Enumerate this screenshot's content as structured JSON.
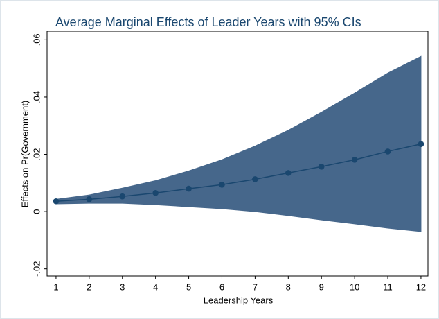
{
  "chart_data": {
    "type": "line",
    "title": "Average Marginal Effects of Leader Years with 95% CIs",
    "x_label": "Leadership Years",
    "y_label": "Effects on Pr(Government)",
    "x": [
      1,
      2,
      3,
      4,
      5,
      6,
      7,
      8,
      9,
      10,
      11,
      12
    ],
    "values": [
      0.0036,
      0.0043,
      0.0053,
      0.0065,
      0.008,
      0.0094,
      0.0113,
      0.0135,
      0.0157,
      0.0181,
      0.021,
      0.0236
    ],
    "ci_upper": [
      0.0043,
      0.0058,
      0.0082,
      0.0108,
      0.0142,
      0.0181,
      0.0229,
      0.0284,
      0.0347,
      0.0414,
      0.0484,
      0.0542
    ],
    "ci_lower": [
      0.0027,
      0.0029,
      0.0029,
      0.0024,
      0.0017,
      0.001,
      0.0,
      -0.0014,
      -0.0029,
      -0.0043,
      -0.0058,
      -0.007
    ],
    "color": "#1a476f",
    "ci_color": "#46678b",
    "xlim": [
      0.73,
      12.21
    ],
    "ylim": [
      -0.0225,
      0.063
    ],
    "xticks": [
      1,
      2,
      3,
      4,
      5,
      6,
      7,
      8,
      9,
      10,
      11,
      12
    ],
    "yticks": [
      {
        "value": -0.02,
        "label": "-.02"
      },
      0,
      {
        "value": 0.02,
        "label": ".02"
      },
      {
        "value": 0.04,
        "label": ".04"
      },
      {
        "value": 0.06,
        "label": ".06"
      }
    ],
    "grid": false
  }
}
